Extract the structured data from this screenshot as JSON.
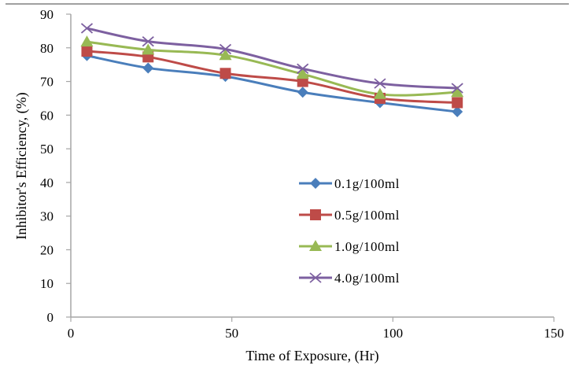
{
  "chart_data": {
    "type": "line",
    "title": "",
    "xlabel": "Time of Exposure, (Hr)",
    "ylabel": "Inhibitor's Efficiency, (%)",
    "xlim": [
      0,
      150
    ],
    "ylim": [
      0,
      90
    ],
    "xticks": [
      0,
      50,
      100,
      150
    ],
    "yticks": [
      0,
      10,
      20,
      30,
      40,
      50,
      60,
      70,
      80,
      90
    ],
    "grid": false,
    "smooth": true,
    "legend_position": "center-right",
    "x": [
      5,
      24,
      48,
      72,
      96,
      120
    ],
    "series": [
      {
        "name": "0.1g/100ml",
        "color": "#4A7EBB",
        "marker": "diamond",
        "values": [
          77.7,
          74.0,
          71.5,
          66.8,
          63.7,
          61.0
        ]
      },
      {
        "name": "0.5g/100ml",
        "color": "#BE4B48",
        "marker": "square",
        "values": [
          79.0,
          77.3,
          72.4,
          70.0,
          65.0,
          63.7
        ]
      },
      {
        "name": "1.0g/100ml",
        "color": "#98B954",
        "marker": "triangle",
        "values": [
          81.8,
          79.4,
          77.8,
          72.2,
          66.2,
          66.8
        ]
      },
      {
        "name": "4.0g/100ml",
        "color": "#7D60A0",
        "marker": "x",
        "values": [
          85.8,
          81.9,
          79.6,
          73.8,
          69.4,
          68.0
        ]
      }
    ]
  }
}
